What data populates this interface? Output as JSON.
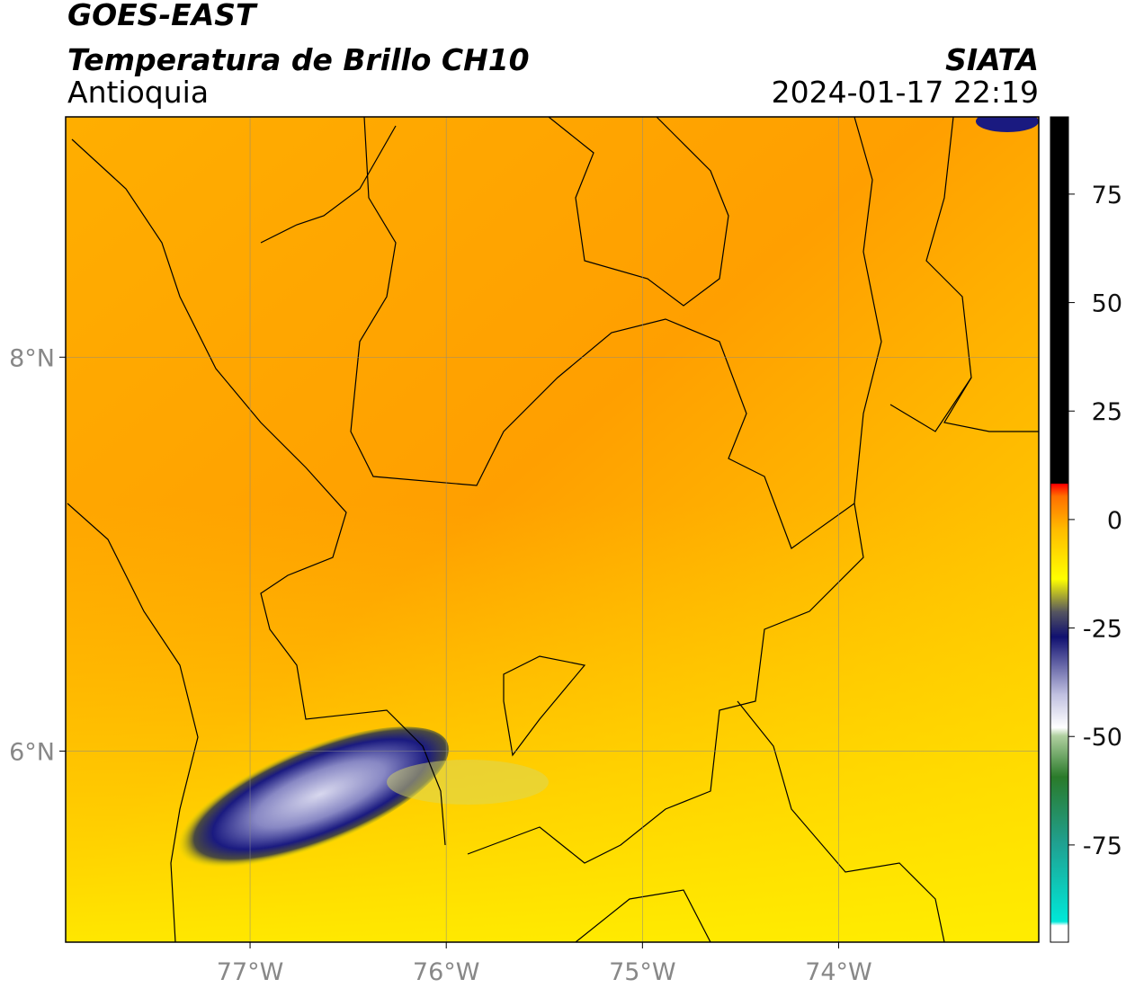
{
  "header": {
    "source": "GOES-EAST",
    "product": "Temperatura de Brillo CH10",
    "region": "Antioquia",
    "agency": "SIATA",
    "datetime": "2024-01-17 22:19"
  },
  "map": {
    "lonlim": [
      -77.94,
      -72.98
    ],
    "latlim": [
      5.03,
      9.22
    ],
    "lonticks": [
      {
        "value": -77,
        "label": "77°W"
      },
      {
        "value": -76,
        "label": "76°W"
      },
      {
        "value": -75,
        "label": "75°W"
      },
      {
        "value": -74,
        "label": "74°W"
      }
    ],
    "latticks": [
      {
        "value": 8,
        "label": "8°N"
      },
      {
        "value": 6,
        "label": "6°N"
      }
    ],
    "grid": true
  },
  "colorbar": {
    "range": [
      -97.4,
      92.8
    ],
    "ticks": [
      75,
      50,
      25,
      0,
      -25,
      -50,
      -75
    ]
  }
}
